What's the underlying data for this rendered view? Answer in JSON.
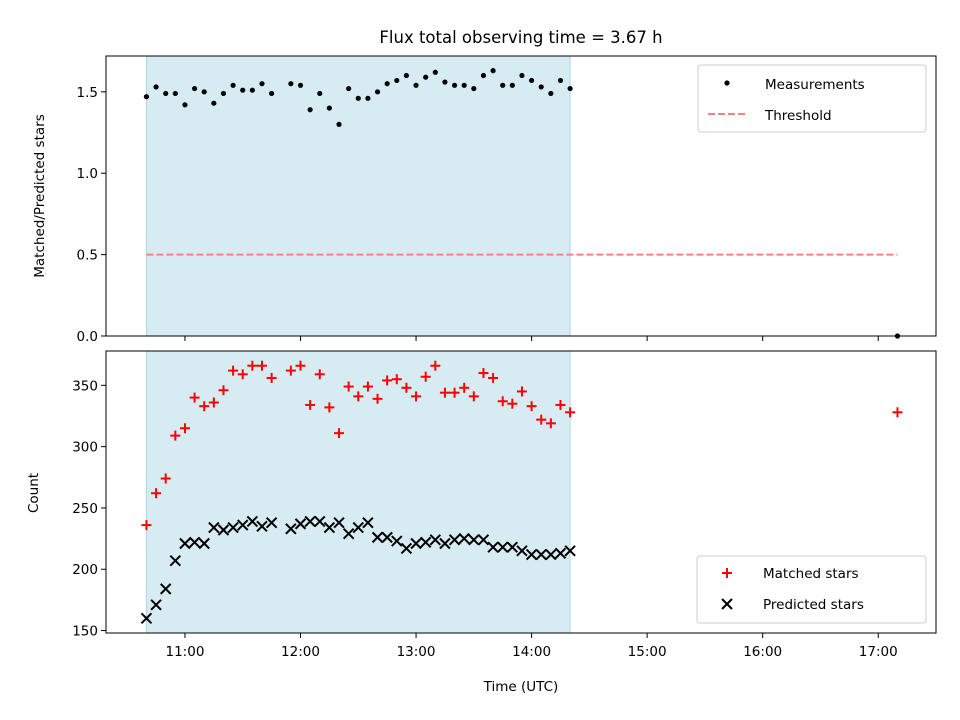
{
  "chart_data": [
    {
      "type": "scatter",
      "title": "Flux total observing time = 3.67 h",
      "xlabel": "",
      "ylabel": "Matched/Predicted stars",
      "xlim": [
        "10:19",
        "17:30"
      ],
      "ylim": [
        0,
        1.72
      ],
      "x_ticks": [
        "11:00",
        "12:00",
        "13:00",
        "14:00",
        "15:00",
        "16:00",
        "17:00"
      ],
      "x_tick_labels_visible": false,
      "y_ticks": [
        0.0,
        0.5,
        1.0,
        1.5
      ],
      "y_tick_labels": [
        "0.0",
        "0.5",
        "1.0",
        "1.5"
      ],
      "shaded_interval": {
        "start": "10:40",
        "end": "14:20",
        "color": "#add8e6"
      },
      "legend_location": "upper right",
      "series": [
        {
          "name": "Measurements",
          "kind": "points",
          "color": "#000000",
          "x": [
            "10:40",
            "10:45",
            "10:50",
            "10:55",
            "11:00",
            "11:05",
            "11:10",
            "11:15",
            "11:20",
            "11:25",
            "11:30",
            "11:35",
            "11:40",
            "11:45",
            "11:55",
            "12:00",
            "12:05",
            "12:10",
            "12:15",
            "12:20",
            "12:25",
            "12:30",
            "12:35",
            "12:40",
            "12:45",
            "12:50",
            "12:55",
            "13:00",
            "13:05",
            "13:10",
            "13:15",
            "13:20",
            "13:25",
            "13:30",
            "13:35",
            "13:40",
            "13:45",
            "13:50",
            "13:55",
            "14:00",
            "14:05",
            "14:10",
            "14:15",
            "14:20",
            "17:10"
          ],
          "y": [
            1.47,
            1.53,
            1.49,
            1.49,
            1.42,
            1.52,
            1.5,
            1.43,
            1.49,
            1.54,
            1.51,
            1.51,
            1.55,
            1.49,
            1.55,
            1.54,
            1.39,
            1.49,
            1.4,
            1.3,
            1.52,
            1.46,
            1.46,
            1.5,
            1.55,
            1.57,
            1.6,
            1.54,
            1.59,
            1.62,
            1.56,
            1.54,
            1.54,
            1.52,
            1.6,
            1.63,
            1.54,
            1.54,
            1.6,
            1.57,
            1.53,
            1.49,
            1.57,
            1.52,
            0.0
          ]
        },
        {
          "name": "Threshold",
          "kind": "line",
          "color": "#ff7f7f",
          "dash": "dashed",
          "x": [
            "10:40",
            "17:10"
          ],
          "y": [
            0.5,
            0.5
          ]
        }
      ]
    },
    {
      "type": "scatter",
      "title": "",
      "xlabel": "Time (UTC)",
      "ylabel": "Count",
      "xlim": [
        "10:19",
        "17:30"
      ],
      "ylim": [
        148,
        378
      ],
      "x_ticks": [
        "11:00",
        "12:00",
        "13:00",
        "14:00",
        "15:00",
        "16:00",
        "17:00"
      ],
      "x_tick_labels": [
        "11:00",
        "12:00",
        "13:00",
        "14:00",
        "15:00",
        "16:00",
        "17:00"
      ],
      "y_ticks": [
        150,
        200,
        250,
        300,
        350
      ],
      "y_tick_labels": [
        "150",
        "200",
        "250",
        "300",
        "350"
      ],
      "shaded_interval": {
        "start": "10:40",
        "end": "14:20",
        "color": "#add8e6"
      },
      "legend_location": "lower right",
      "series": [
        {
          "name": "Matched stars",
          "marker": "plus",
          "color": "#ff0000",
          "x": [
            "10:40",
            "10:45",
            "10:50",
            "10:55",
            "11:00",
            "11:05",
            "11:10",
            "11:15",
            "11:20",
            "11:25",
            "11:30",
            "11:35",
            "11:40",
            "11:45",
            "11:55",
            "12:00",
            "12:05",
            "12:10",
            "12:15",
            "12:20",
            "12:25",
            "12:30",
            "12:35",
            "12:40",
            "12:45",
            "12:50",
            "12:55",
            "13:00",
            "13:05",
            "13:10",
            "13:15",
            "13:20",
            "13:25",
            "13:30",
            "13:35",
            "13:40",
            "13:45",
            "13:50",
            "13:55",
            "14:00",
            "14:05",
            "14:10",
            "14:15",
            "14:20",
            "17:10"
          ],
          "y": [
            236,
            262,
            274,
            309,
            315,
            340,
            333,
            336,
            346,
            362,
            359,
            366,
            366,
            356,
            362,
            366,
            334,
            359,
            332,
            311,
            349,
            341,
            349,
            339,
            354,
            355,
            348,
            341,
            357,
            366,
            344,
            344,
            348,
            341,
            360,
            356,
            337,
            335,
            345,
            333,
            322,
            319,
            334,
            328,
            328
          ]
        },
        {
          "name": "Predicted stars",
          "marker": "x",
          "color": "#000000",
          "x": [
            "10:40",
            "10:45",
            "10:50",
            "10:55",
            "11:00",
            "11:05",
            "11:10",
            "11:15",
            "11:20",
            "11:25",
            "11:30",
            "11:35",
            "11:40",
            "11:45",
            "11:55",
            "12:00",
            "12:05",
            "12:10",
            "12:15",
            "12:20",
            "12:25",
            "12:30",
            "12:35",
            "12:40",
            "12:45",
            "12:50",
            "12:55",
            "13:00",
            "13:05",
            "13:10",
            "13:15",
            "13:20",
            "13:25",
            "13:30",
            "13:35",
            "13:40",
            "13:45",
            "13:50",
            "13:55",
            "14:00",
            "14:05",
            "14:10",
            "14:15",
            "14:20"
          ],
          "y": [
            160,
            171,
            184,
            207,
            221,
            222,
            221,
            234,
            232,
            234,
            236,
            239,
            235,
            238,
            233,
            237,
            239,
            239,
            234,
            238,
            229,
            234,
            238,
            226,
            226,
            223,
            217,
            221,
            222,
            224,
            221,
            224,
            225,
            224,
            224,
            218,
            218,
            218,
            215,
            212,
            212,
            212,
            213,
            215
          ]
        }
      ]
    }
  ]
}
